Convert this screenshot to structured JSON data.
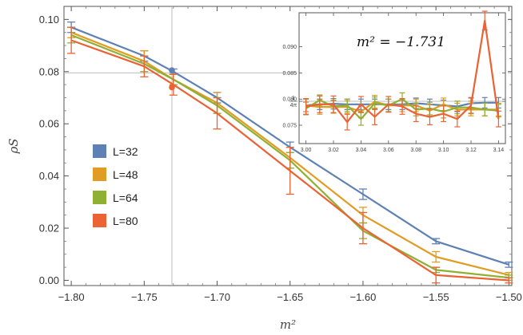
{
  "chart_data": [
    {
      "type": "line",
      "title": "",
      "xlabel": "m²",
      "ylabel": "ρS",
      "x": [
        -1.8,
        -1.75,
        -1.73,
        -1.7,
        -1.65,
        -1.6,
        -1.55,
        -1.5
      ],
      "xlim": [
        -1.805,
        -1.498
      ],
      "ylim": [
        -0.002,
        0.105
      ],
      "xticks": [
        "−1.80",
        "−1.75",
        "−1.70",
        "−1.65",
        "−1.60",
        "−1.55",
        "−1.50"
      ],
      "xtick_values": [
        -1.8,
        -1.75,
        -1.7,
        -1.65,
        -1.6,
        -1.55,
        -1.5
      ],
      "yticks": [
        "0.00",
        "0.02",
        "0.04",
        "0.06",
        "0.08",
        "0.10"
      ],
      "ytick_values": [
        0.0,
        0.02,
        0.04,
        0.06,
        0.08,
        0.1
      ],
      "grid": "off",
      "reference_lines": {
        "x": -1.731,
        "y": 0.0795
      },
      "legend_placement": "center-left",
      "series": [
        {
          "name": "L=32",
          "color": "#5E81B5",
          "values": [
            0.097,
            0.086,
            0.08,
            0.07,
            0.051,
            0.033,
            0.015,
            0.006
          ],
          "errors": [
            0.002,
            0.002,
            0.001,
            0.002,
            0.002,
            0.002,
            0.001,
            0.001
          ]
        },
        {
          "name": "L=48",
          "color": "#E19C24",
          "values": [
            0.095,
            0.084,
            0.077,
            0.068,
            0.047,
            0.025,
            0.009,
            0.002
          ],
          "errors": [
            0.002,
            0.004,
            0.002,
            0.004,
            0.004,
            0.003,
            0.002,
            0.001
          ]
        },
        {
          "name": "L=64",
          "color": "#8FB032",
          "values": [
            0.094,
            0.083,
            0.077,
            0.067,
            0.046,
            0.019,
            0.004,
            0.001
          ],
          "errors": [
            0.003,
            0.003,
            0.002,
            0.003,
            0.003,
            0.003,
            0.001,
            0.001
          ]
        },
        {
          "name": "L=80",
          "color": "#EB6235",
          "values": [
            0.092,
            0.082,
            0.075,
            0.064,
            0.042,
            0.02,
            0.002,
            0.0
          ],
          "errors": [
            0.005,
            0.004,
            0.004,
            0.006,
            0.009,
            0.006,
            0.003,
            0.001
          ]
        }
      ],
      "highlight_points": [
        {
          "series": "L=32",
          "x": -1.731,
          "y": 0.0805
        },
        {
          "series": "L=80",
          "x": -1.731,
          "y": 0.074
        }
      ]
    },
    {
      "type": "line",
      "title": "",
      "annotation": "m² = −1.731",
      "xlim": [
        2.995,
        3.145
      ],
      "ylim": [
        0.0715,
        0.0965
      ],
      "xticks": [
        "3.00",
        "3.02",
        "3.04",
        "3.06",
        "3.08",
        "3.10",
        "3.12",
        "3.14"
      ],
      "xtick_values": [
        3.0,
        3.02,
        3.04,
        3.06,
        3.08,
        3.1,
        3.12,
        3.14
      ],
      "yticks": [
        "0.075",
        "1/4π",
        "0.080",
        "0.085",
        "0.090"
      ],
      "ytick_values": [
        0.075,
        0.0795775,
        0.08,
        0.085,
        0.09
      ],
      "reference_line": {
        "y": 0.0795775
      },
      "x": [
        3.0,
        3.01,
        3.02,
        3.03,
        3.04,
        3.05,
        3.06,
        3.07,
        3.08,
        3.09,
        3.1,
        3.11,
        3.12,
        3.13,
        3.14
      ],
      "series": [
        {
          "name": "L=32",
          "color": "#5E81B5",
          "values": [
            0.0788,
            0.079,
            0.0791,
            0.079,
            0.079,
            0.079,
            0.079,
            0.079,
            0.0792,
            0.079,
            0.0788,
            0.0786,
            0.0792,
            0.0793,
            0.0793
          ],
          "errors": [
            0.0012,
            0.001,
            0.001,
            0.001,
            0.001,
            0.001,
            0.001,
            0.001,
            0.001,
            0.001,
            0.001,
            0.001,
            0.001,
            0.001,
            0.001
          ]
        },
        {
          "name": "L=48",
          "color": "#E19C24",
          "values": [
            0.0788,
            0.0785,
            0.0785,
            0.0785,
            0.0776,
            0.0795,
            0.0788,
            0.0788,
            0.0788,
            0.0778,
            0.079,
            0.078,
            0.078,
            0.078,
            0.078
          ],
          "errors": [
            0.0012,
            0.0014,
            0.0012,
            0.0012,
            0.0012,
            0.0012,
            0.0012,
            0.0012,
            0.0012,
            0.0012,
            0.0012,
            0.0012,
            0.0012,
            0.0012,
            0.0012
          ]
        },
        {
          "name": "L=64",
          "color": "#8FB032",
          "values": [
            0.0782,
            0.0798,
            0.0786,
            0.0788,
            0.0762,
            0.0792,
            0.0788,
            0.08,
            0.078,
            0.0782,
            0.0776,
            0.0784,
            0.0784,
            0.078,
            0.0778
          ],
          "errors": [
            0.0012,
            0.001,
            0.0012,
            0.0012,
            0.0012,
            0.0012,
            0.0012,
            0.0012,
            0.0012,
            0.0012,
            0.0012,
            0.0012,
            0.0012,
            0.0012,
            0.0012
          ]
        },
        {
          "name": "L=80",
          "color": "#EB6235",
          "values": [
            0.0786,
            0.079,
            0.079,
            0.0756,
            0.079,
            0.0766,
            0.079,
            0.0786,
            0.0772,
            0.0766,
            0.0772,
            0.0762,
            0.0788,
            0.095,
            0.0762
          ],
          "errors": [
            0.0015,
            0.0016,
            0.0016,
            0.0015,
            0.0015,
            0.0015,
            0.0015,
            0.0015,
            0.0015,
            0.0015,
            0.0015,
            0.0015,
            0.0015,
            0.0018,
            0.0015
          ]
        }
      ]
    }
  ]
}
